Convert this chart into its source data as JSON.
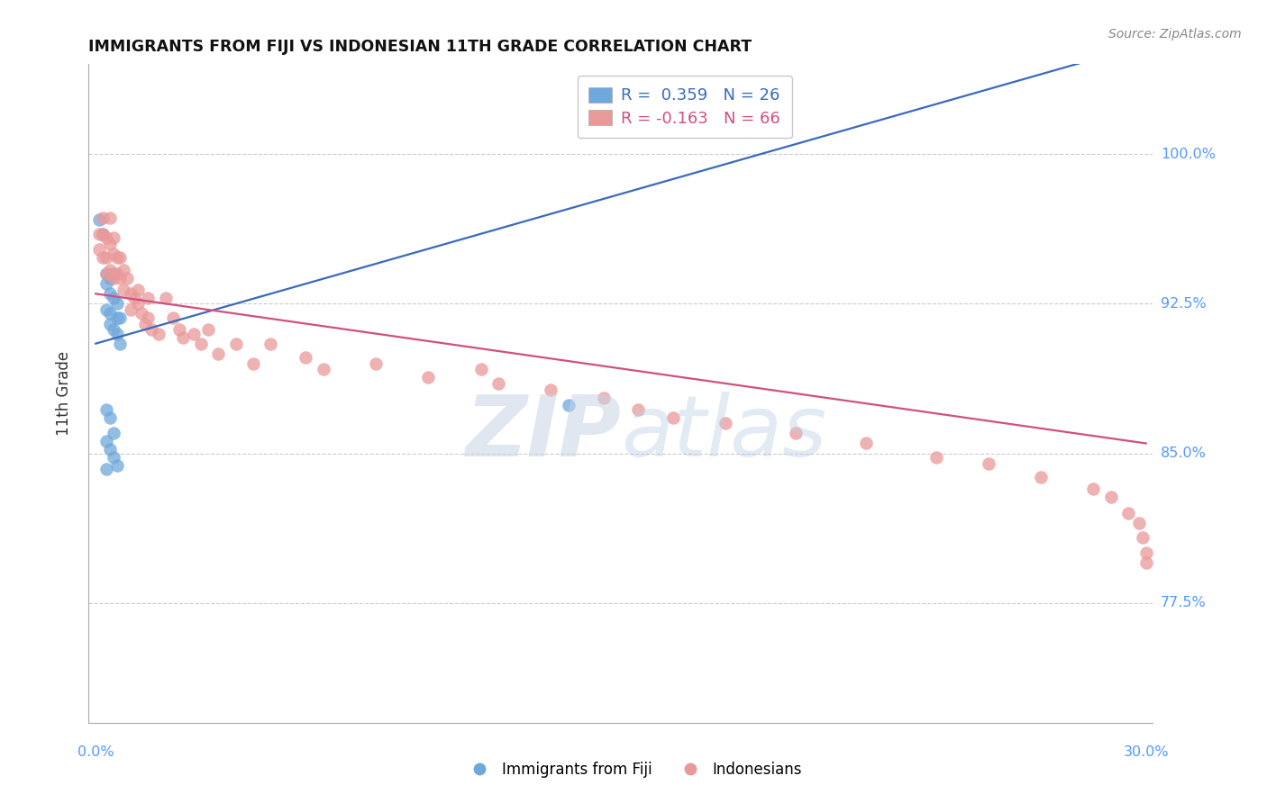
{
  "title": "IMMIGRANTS FROM FIJI VS INDONESIAN 11TH GRADE CORRELATION CHART",
  "source": "Source: ZipAtlas.com",
  "ylabel": "11th Grade",
  "ytick_labels": [
    "77.5%",
    "85.0%",
    "92.5%",
    "100.0%"
  ],
  "ytick_values": [
    0.775,
    0.85,
    0.925,
    1.0
  ],
  "xlim": [
    0.0,
    0.3
  ],
  "ylim": [
    0.715,
    1.045
  ],
  "legend_fiji_R": "0.359",
  "legend_fiji_N": "26",
  "legend_indo_R": "-0.163",
  "legend_indo_N": "66",
  "fiji_color": "#6fa8dc",
  "indo_color": "#ea9999",
  "fiji_line_color": "#3a6abf",
  "indo_line_color": "#d05080",
  "fiji_line": [
    0.0,
    0.905,
    0.3,
    1.055
  ],
  "indo_line": [
    0.0,
    0.93,
    0.3,
    0.855
  ],
  "fiji_x": [
    0.001,
    0.002,
    0.003,
    0.003,
    0.004,
    0.004,
    0.005,
    0.005,
    0.003,
    0.004,
    0.004,
    0.005,
    0.006,
    0.006,
    0.006,
    0.007,
    0.007,
    0.003,
    0.004,
    0.005,
    0.003,
    0.004,
    0.005,
    0.006,
    0.003,
    0.135
  ],
  "fiji_y": [
    0.967,
    0.96,
    0.94,
    0.935,
    0.938,
    0.93,
    0.94,
    0.928,
    0.922,
    0.92,
    0.915,
    0.912,
    0.925,
    0.918,
    0.91,
    0.918,
    0.905,
    0.872,
    0.868,
    0.86,
    0.856,
    0.852,
    0.848,
    0.844,
    0.842,
    0.874
  ],
  "indo_x": [
    0.001,
    0.001,
    0.002,
    0.002,
    0.002,
    0.003,
    0.003,
    0.003,
    0.004,
    0.004,
    0.004,
    0.005,
    0.005,
    0.005,
    0.006,
    0.006,
    0.007,
    0.007,
    0.008,
    0.008,
    0.009,
    0.01,
    0.01,
    0.011,
    0.012,
    0.012,
    0.013,
    0.014,
    0.015,
    0.015,
    0.016,
    0.018,
    0.02,
    0.022,
    0.024,
    0.025,
    0.028,
    0.03,
    0.032,
    0.035,
    0.04,
    0.045,
    0.05,
    0.06,
    0.065,
    0.08,
    0.095,
    0.11,
    0.115,
    0.13,
    0.145,
    0.155,
    0.165,
    0.18,
    0.2,
    0.22,
    0.24,
    0.255,
    0.27,
    0.285,
    0.29,
    0.295,
    0.298,
    0.299,
    0.3,
    0.3
  ],
  "indo_y": [
    0.96,
    0.952,
    0.968,
    0.96,
    0.948,
    0.958,
    0.948,
    0.94,
    0.968,
    0.955,
    0.942,
    0.958,
    0.95,
    0.938,
    0.948,
    0.94,
    0.948,
    0.938,
    0.942,
    0.932,
    0.938,
    0.93,
    0.922,
    0.928,
    0.932,
    0.925,
    0.92,
    0.915,
    0.928,
    0.918,
    0.912,
    0.91,
    0.928,
    0.918,
    0.912,
    0.908,
    0.91,
    0.905,
    0.912,
    0.9,
    0.905,
    0.895,
    0.905,
    0.898,
    0.892,
    0.895,
    0.888,
    0.892,
    0.885,
    0.882,
    0.878,
    0.872,
    0.868,
    0.865,
    0.86,
    0.855,
    0.848,
    0.845,
    0.838,
    0.832,
    0.828,
    0.82,
    0.815,
    0.808,
    0.8,
    0.795
  ]
}
